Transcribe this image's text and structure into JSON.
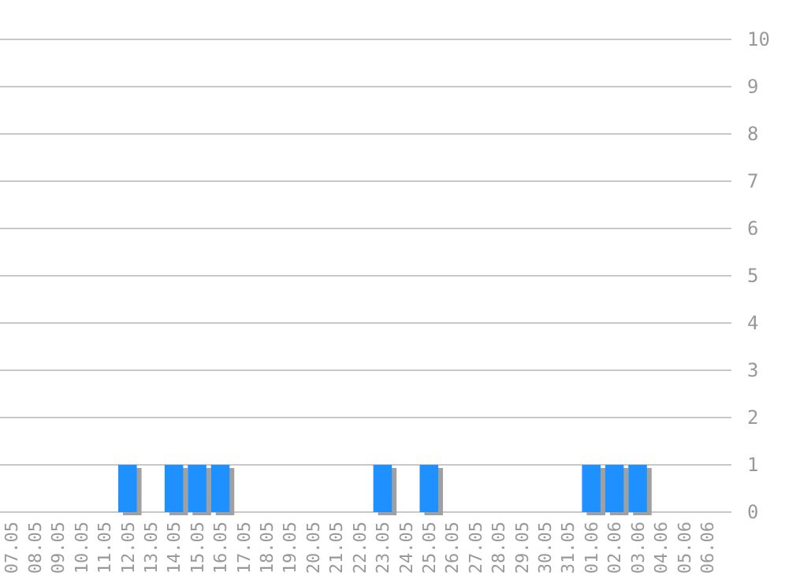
{
  "chart_data": {
    "type": "bar",
    "categories": [
      "07.05",
      "08.05",
      "09.05",
      "10.05",
      "11.05",
      "12.05",
      "13.05",
      "14.05",
      "15.05",
      "16.05",
      "17.05",
      "18.05",
      "19.05",
      "20.05",
      "21.05",
      "22.05",
      "23.05",
      "24.05",
      "25.05",
      "26.05",
      "27.05",
      "28.05",
      "29.05",
      "30.05",
      "31.05",
      "01.06",
      "02.06",
      "03.06",
      "04.06",
      "05.06",
      "06.06"
    ],
    "values": [
      0,
      0,
      0,
      0,
      0,
      1,
      0,
      1,
      1,
      1,
      0,
      0,
      0,
      0,
      0,
      0,
      1,
      0,
      1,
      0,
      0,
      0,
      0,
      0,
      0,
      1,
      1,
      1,
      0,
      0,
      0
    ],
    "color": "#1e90ff",
    "ylim": [
      0,
      10
    ],
    "yticks": [
      0,
      1,
      2,
      3,
      4,
      5,
      6,
      7,
      8,
      9,
      10
    ],
    "grid": "y"
  }
}
